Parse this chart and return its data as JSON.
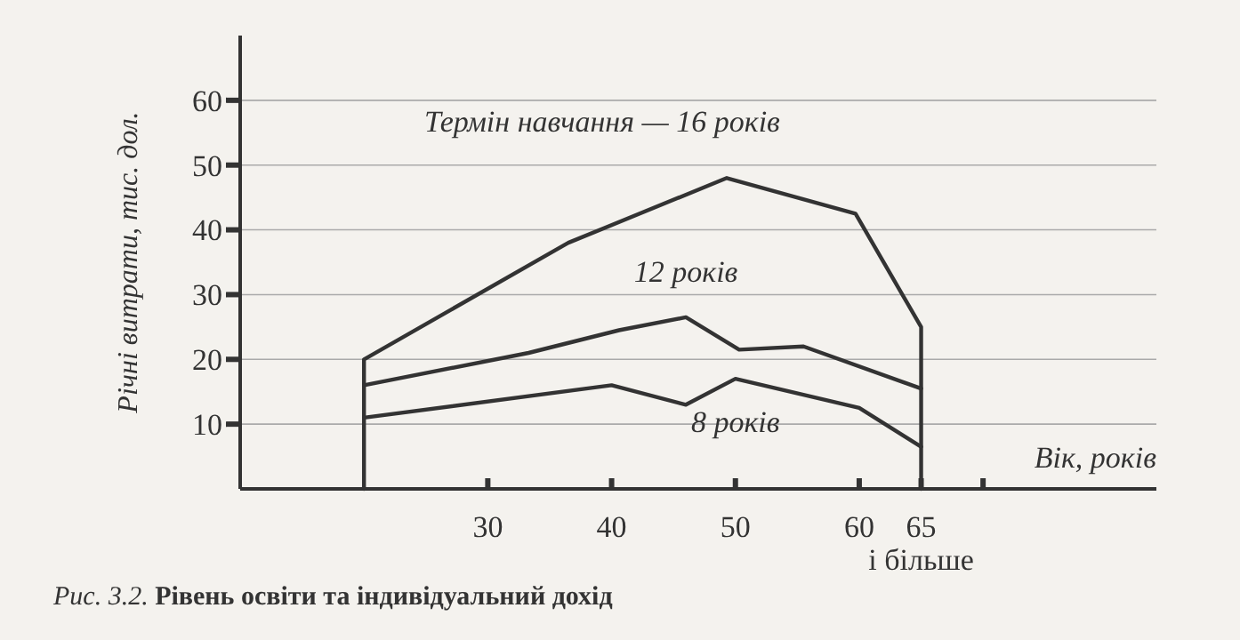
{
  "chart_data": {
    "type": "line",
    "title": "Рис. 3.2. Рівень освіти та індивідуальний дохід",
    "xlabel": "Вік, років",
    "ylabel": "Річні витрати, тис. дол.",
    "xlim": [
      10,
      84
    ],
    "ylim": [
      0,
      70
    ],
    "xticks": [
      30,
      40,
      50,
      60,
      {
        "value": 65,
        "label": "65 і більше"
      },
      {
        "value": 70,
        "label": null
      }
    ],
    "yticks": [
      10,
      20,
      30,
      40,
      50,
      60
    ],
    "grid": "y",
    "marker": "none",
    "line_style": "solid",
    "series": [
      {
        "name": "Термін навчання — 16 років",
        "color": "#333333",
        "x": [
          20,
          20,
          36.5,
          49.3,
          59.7,
          65,
          65
        ],
        "values": [
          0,
          20,
          38,
          48,
          42.5,
          25,
          0
        ]
      },
      {
        "name": "12 років",
        "color": "#333333",
        "x": [
          20,
          33.3,
          40.6,
          46,
          50.3,
          55.5,
          65
        ],
        "values": [
          16,
          21,
          24.5,
          26.5,
          21.5,
          22,
          15.5
        ]
      },
      {
        "name": "8 років",
        "color": "#333333",
        "x": [
          20,
          40,
          46,
          50,
          60,
          65
        ],
        "values": [
          11,
          16,
          13,
          17,
          12.5,
          6.5
        ]
      }
    ]
  }
}
